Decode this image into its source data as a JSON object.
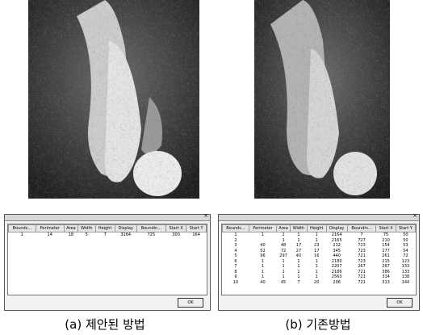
{
  "panels": [
    {
      "caption": "(a) 제안된 방법",
      "dialog": {
        "headers": [
          "Bounds...",
          "Perimeter",
          "Area",
          "Width",
          "Height",
          "Display",
          "Boundin...",
          "Start X",
          "Start Y"
        ],
        "rows": [
          [
            "1",
            "14",
            "18",
            "5",
            "7",
            "3164",
            "725",
            "300",
            "164"
          ]
        ],
        "button": "OK"
      }
    },
    {
      "caption": "(b) 기존방법",
      "dialog": {
        "headers": [
          "Bounds...",
          "Perimeter",
          "Area",
          "Width",
          "Height",
          "Display",
          "Boundin...",
          "Start X",
          "Start Y"
        ],
        "rows": [
          [
            "1",
            "1",
            "1",
            "1",
            "1",
            "2164",
            "7",
            "75",
            "50"
          ],
          [
            "2",
            "",
            "1",
            "1",
            "1",
            "2165",
            "727",
            "210",
            "50"
          ],
          [
            "3",
            "40",
            "48",
            "17",
            "23",
            "212",
            "723",
            "154",
            "53"
          ],
          [
            "4",
            "52",
            "72",
            "27",
            "17",
            "345",
            "723",
            "277",
            "54"
          ],
          [
            "5",
            "96",
            "297",
            "40",
            "16",
            "440",
            "721",
            "261",
            "72"
          ],
          [
            "6",
            "1",
            "1",
            "1",
            "1",
            "2180",
            "723",
            "215",
            "123"
          ],
          [
            "7",
            "1",
            "1",
            "1",
            "1",
            "2207",
            "267",
            "267",
            "133"
          ],
          [
            "8",
            "1",
            "1",
            "1",
            "1",
            "2186",
            "721",
            "386",
            "133"
          ],
          [
            "9",
            "1",
            "1",
            "1",
            "1",
            "2560",
            "721",
            "314",
            "138"
          ],
          [
            "10",
            "40",
            "45",
            "7",
            "20",
            "206",
            "721",
            "313",
            "144"
          ]
        ],
        "button": "OK"
      }
    }
  ]
}
